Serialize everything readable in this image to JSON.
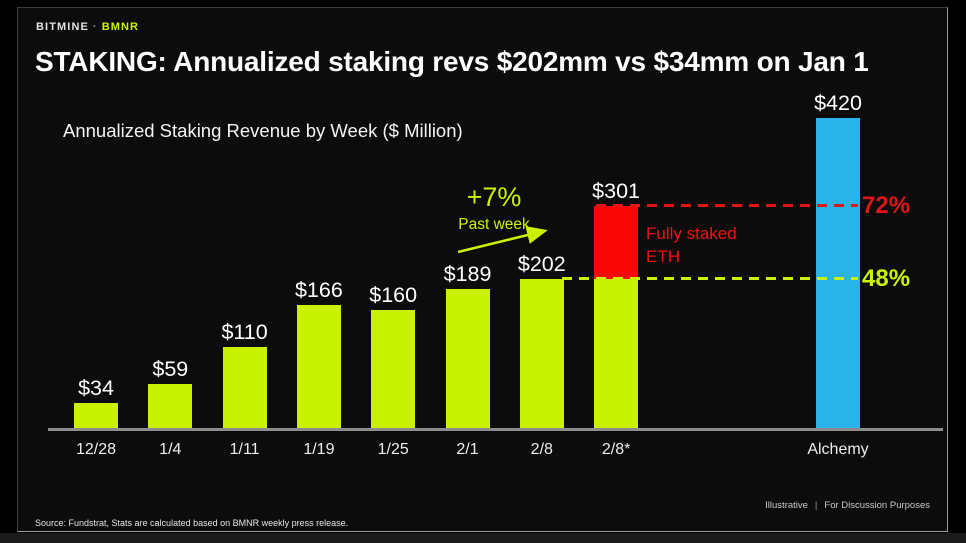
{
  "header": {
    "eyebrow_brand": "BITMINE",
    "eyebrow_sep": "·",
    "eyebrow_ticker": "BMNR",
    "title": "STAKING: Annualized staking revs $202mm vs $34mm on Jan 1"
  },
  "colors": {
    "accent_green": "#c9f202",
    "accent_blue": "#29b3e8",
    "accent_red": "#f31111",
    "bar_red": "#fb0707",
    "axis_gray": "#8c8c8c"
  },
  "chart_data": {
    "type": "bar",
    "title": "Annualized Staking Revenue by Week ($ Million)",
    "ylabel": "$ Million",
    "ylim": [
      0,
      440
    ],
    "grid": false,
    "categories": [
      "12/28",
      "1/4",
      "1/11",
      "1/19",
      "1/25",
      "2/1",
      "2/8",
      "2/8*",
      "Alchemy"
    ],
    "bars": [
      {
        "category": "12/28",
        "total": 34,
        "label": "$34",
        "segments": [
          {
            "value": 34,
            "color": "#c9f202"
          }
        ]
      },
      {
        "category": "1/4",
        "total": 59,
        "label": "$59",
        "segments": [
          {
            "value": 59,
            "color": "#c9f202"
          }
        ]
      },
      {
        "category": "1/11",
        "total": 110,
        "label": "$110",
        "segments": [
          {
            "value": 110,
            "color": "#c9f202"
          }
        ]
      },
      {
        "category": "1/19",
        "total": 166,
        "label": "$166",
        "segments": [
          {
            "value": 166,
            "color": "#c9f202"
          }
        ]
      },
      {
        "category": "1/25",
        "total": 160,
        "label": "$160",
        "segments": [
          {
            "value": 160,
            "color": "#c9f202"
          }
        ]
      },
      {
        "category": "2/1",
        "total": 189,
        "label": "$189",
        "segments": [
          {
            "value": 189,
            "color": "#c9f202"
          }
        ]
      },
      {
        "category": "2/8",
        "total": 202,
        "label": "$202",
        "segments": [
          {
            "value": 202,
            "color": "#c9f202"
          }
        ]
      },
      {
        "category": "2/8*",
        "total": 301,
        "label": "$301",
        "segments": [
          {
            "value": 202,
            "color": "#c9f202"
          },
          {
            "value": 99,
            "color": "#fb0707"
          }
        ]
      },
      {
        "category": "Alchemy",
        "total": 420,
        "label": "$420",
        "segments": [
          {
            "value": 420,
            "color": "#29b3e8"
          }
        ]
      }
    ],
    "reference_lines": [
      {
        "at": 301,
        "color": "#e01515",
        "label": "72%"
      },
      {
        "at": 202,
        "color": "#c9f202",
        "label": "48%"
      }
    ],
    "annotations": {
      "growth_pct": "+7%",
      "growth_caption": "Past week",
      "stacked_note_line1": "Fully staked",
      "stacked_note_line2": "ETH"
    }
  },
  "footer": {
    "source": "Source: Fundstrat, Stats are calculated based on BMNR weekly press release.",
    "disclaimer_left": "Illustrative",
    "disclaimer_sep": "|",
    "disclaimer_right": "For Discussion Purposes"
  }
}
